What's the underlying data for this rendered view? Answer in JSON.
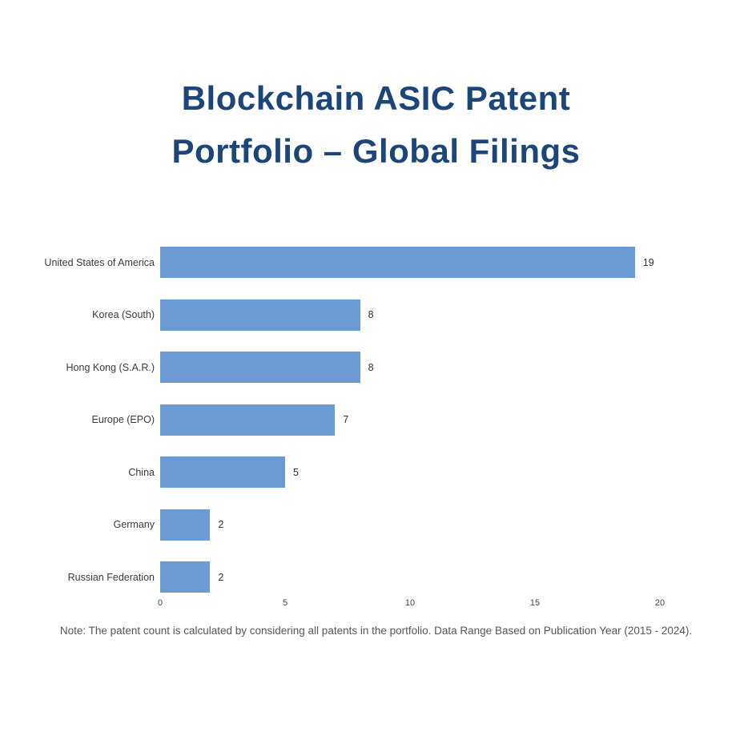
{
  "title": {
    "line1": "Blockchain ASIC Patent",
    "line2": "Portfolio – Global Filings",
    "color": "#1c4679"
  },
  "chart_data": {
    "type": "bar",
    "orientation": "horizontal",
    "title": "Blockchain ASIC Patent Portfolio – Global Filings",
    "categories": [
      "United States of America",
      "Korea (South)",
      "Hong Kong (S.A.R.)",
      "Europe (EPO)",
      "China",
      "Germany",
      "Russian Federation"
    ],
    "values": [
      19,
      8,
      8,
      7,
      5,
      2,
      2
    ],
    "xticks": [
      0,
      5,
      10,
      15,
      20
    ],
    "xlim": [
      0,
      20
    ],
    "xlabel": "",
    "ylabel": "",
    "grid": false,
    "legend": false,
    "bar_color": "#6c9ad5",
    "data_labels": true
  },
  "note": "Note: The patent count is calculated by considering all patents in the portfolio. Data Range Based on Publication Year (2015 - 2024)."
}
